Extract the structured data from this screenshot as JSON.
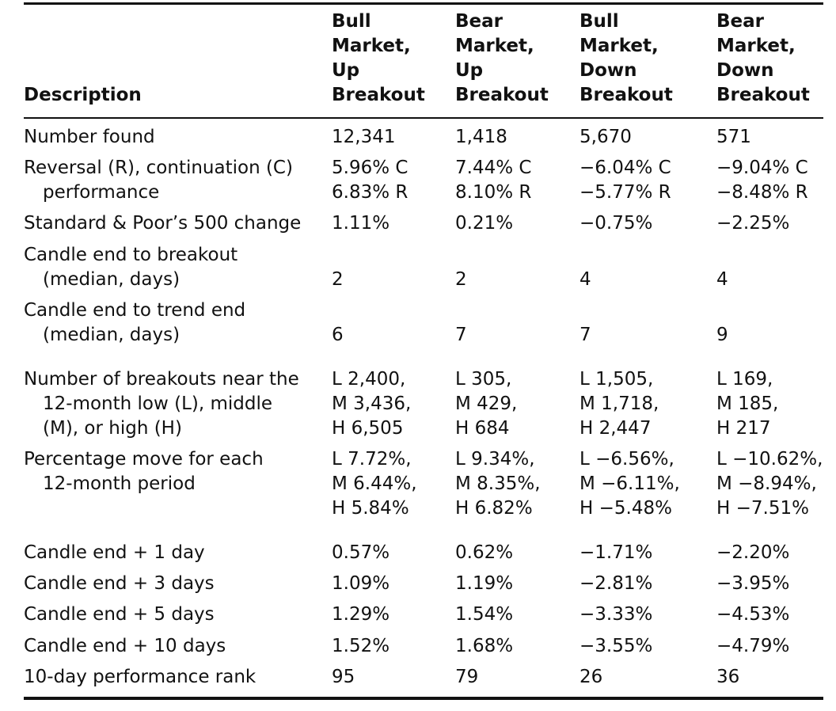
{
  "header": {
    "description": "Description",
    "columns": [
      [
        "Bull",
        "Market,",
        "Up",
        "Breakout"
      ],
      [
        "Bear",
        "Market,",
        "Up",
        "Breakout"
      ],
      [
        "Bull",
        "Market,",
        "Down",
        "Breakout"
      ],
      [
        "Bear",
        "Market,",
        "Down",
        "Breakout"
      ]
    ]
  },
  "rows": [
    {
      "label": [
        "Number found"
      ],
      "values": [
        [
          "12,341"
        ],
        [
          "1,418"
        ],
        [
          "5,670"
        ],
        [
          "571"
        ]
      ]
    },
    {
      "label": [
        "Reversal (R), continuation (C)",
        "performance"
      ],
      "values": [
        [
          "5.96% C",
          "6.83% R"
        ],
        [
          "7.44% C",
          "8.10% R"
        ],
        [
          "−6.04% C",
          "−5.77% R"
        ],
        [
          "−9.04% C",
          "−8.48% R"
        ]
      ]
    },
    {
      "label": [
        "Standard & Poor’s 500 change"
      ],
      "values": [
        [
          "1.11%"
        ],
        [
          "0.21%"
        ],
        [
          "−0.75%"
        ],
        [
          "−2.25%"
        ]
      ]
    },
    {
      "label": [
        "Candle end to breakout",
        "(median, days)"
      ],
      "values": [
        [
          "2"
        ],
        [
          "2"
        ],
        [
          "4"
        ],
        [
          "4"
        ]
      ]
    },
    {
      "label": [
        "Candle end to trend end",
        "(median, days)"
      ],
      "values": [
        [
          "6"
        ],
        [
          "7"
        ],
        [
          "7"
        ],
        [
          "9"
        ]
      ]
    },
    {
      "label": [
        "Number of breakouts near the",
        "12-month low (L), middle",
        "(M), or high (H)"
      ],
      "values": [
        [
          "L 2,400,",
          "M 3,436,",
          "H 6,505"
        ],
        [
          "L 305,",
          "M 429,",
          "H 684"
        ],
        [
          "L 1,505,",
          "M 1,718,",
          "H 2,447"
        ],
        [
          "L 169,",
          "M 185,",
          "H 217"
        ]
      ]
    },
    {
      "label": [
        "Percentage move for each",
        "12-month period"
      ],
      "values": [
        [
          "L 7.72%,",
          "M 6.44%,",
          "H 5.84%"
        ],
        [
          "L 9.34%,",
          "M 8.35%,",
          "H 6.82%"
        ],
        [
          "L −6.56%,",
          "M −6.11%,",
          "H −5.48%"
        ],
        [
          "L −10.62%,",
          "M −8.94%,",
          "H −7.51%"
        ]
      ]
    },
    {
      "label": [
        "Candle end + 1 day"
      ],
      "values": [
        [
          "0.57%"
        ],
        [
          "0.62%"
        ],
        [
          "−1.71%"
        ],
        [
          "−2.20%"
        ]
      ]
    },
    {
      "label": [
        "Candle end + 3 days"
      ],
      "values": [
        [
          "1.09%"
        ],
        [
          "1.19%"
        ],
        [
          "−2.81%"
        ],
        [
          "−3.95%"
        ]
      ]
    },
    {
      "label": [
        "Candle end + 5 days"
      ],
      "values": [
        [
          "1.29%"
        ],
        [
          "1.54%"
        ],
        [
          "−3.33%"
        ],
        [
          "−4.53%"
        ]
      ]
    },
    {
      "label": [
        "Candle end + 10 days"
      ],
      "values": [
        [
          "1.52%"
        ],
        [
          "1.68%"
        ],
        [
          "−3.55%"
        ],
        [
          "−4.79%"
        ]
      ]
    },
    {
      "label": [
        "10-day performance rank"
      ],
      "values": [
        [
          "95"
        ],
        [
          "79"
        ],
        [
          "26"
        ],
        [
          "36"
        ]
      ]
    }
  ]
}
